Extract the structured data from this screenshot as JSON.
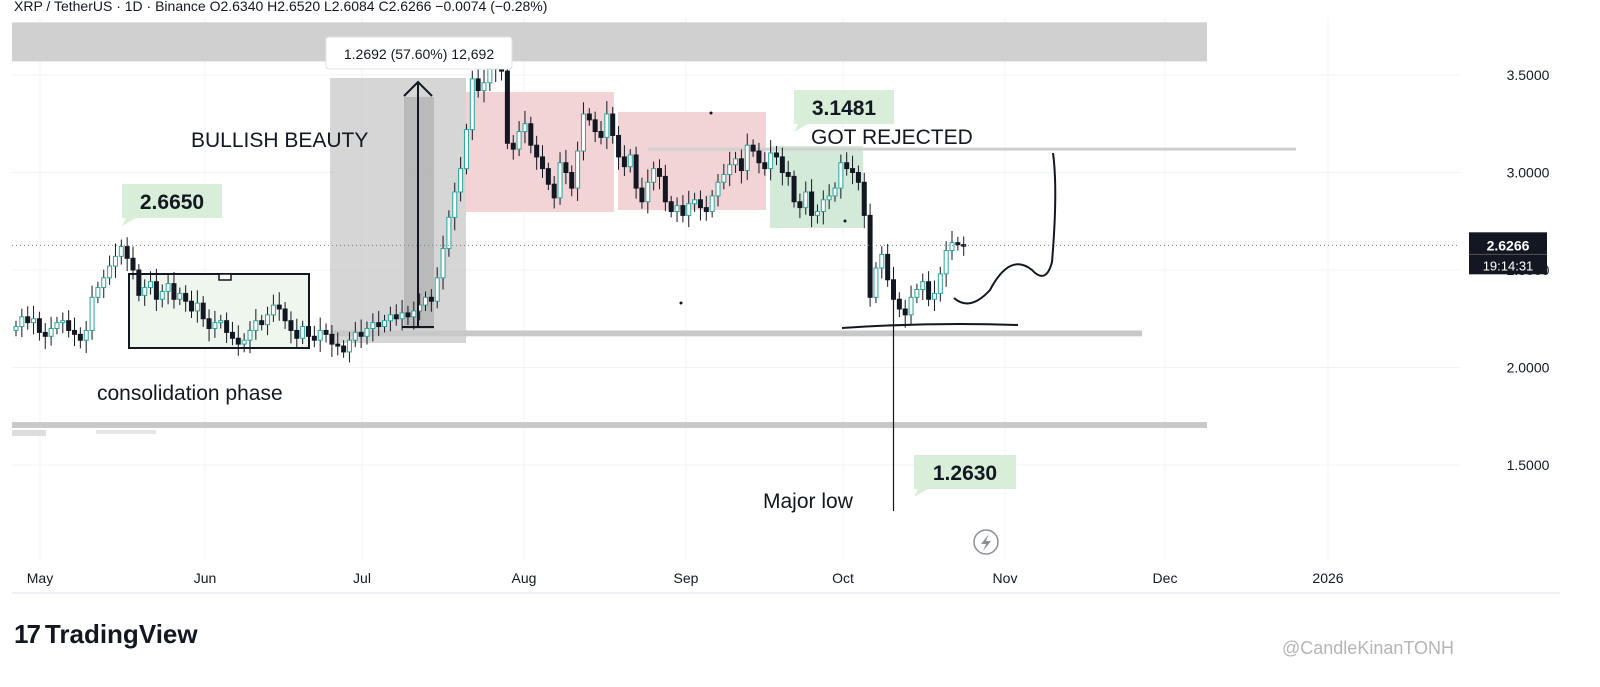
{
  "header": {
    "symbol_line": "XRP / TetherUS · 1D · Binance  O2.6340  H2.6520  L2.6084  C2.6266  −0.0074 (−0.28%)"
  },
  "brand": {
    "logo_text": "TradingView",
    "logo_icon": "tradingview-logo-icon"
  },
  "watermark": "@CandleKinanTONH",
  "colors": {
    "up": "#26a69a",
    "down": "#131722",
    "zone_gray": "#c8c8c8",
    "zone_red": "#f2d3d6",
    "zone_green": "#d3ead9",
    "zone_lightgreen": "#eef6ee",
    "label_green": "#d8eed8",
    "price_tag": "#131722"
  },
  "chart_data": {
    "type": "candlestick",
    "x_labels": [
      "May",
      "Jun",
      "Jul",
      "Aug",
      "Sep",
      "Oct",
      "Nov",
      "Dec",
      "2026"
    ],
    "y_ticks": [
      "3.5000",
      "3.0000",
      "2.5000",
      "2.0000",
      "1.5000"
    ],
    "y_tick_values": [
      3.5,
      3.0,
      2.5,
      2.0,
      1.5
    ],
    "ylim": [
      1.0,
      3.9
    ],
    "current_price": {
      "value": 2.6266,
      "label": "2.6266",
      "countdown": "19:14:31"
    },
    "closes": [
      2.21,
      2.26,
      2.23,
      2.25,
      2.18,
      2.16,
      2.2,
      2.23,
      2.24,
      2.19,
      2.17,
      2.14,
      2.19,
      2.36,
      2.41,
      2.46,
      2.52,
      2.57,
      2.62,
      2.56,
      2.5,
      2.37,
      2.41,
      2.44,
      2.35,
      2.39,
      2.43,
      2.35,
      2.38,
      2.34,
      2.29,
      2.33,
      2.25,
      2.2,
      2.23,
      2.24,
      2.18,
      2.15,
      2.12,
      2.14,
      2.19,
      2.24,
      2.22,
      2.27,
      2.32,
      2.3,
      2.24,
      2.19,
      2.15,
      2.21,
      2.16,
      2.14,
      2.19,
      2.17,
      2.12,
      2.11,
      2.08,
      2.14,
      2.18,
      2.16,
      2.2,
      2.23,
      2.21,
      2.24,
      2.27,
      2.25,
      2.28,
      2.26,
      2.29,
      2.32,
      2.36,
      2.34,
      2.46,
      2.61,
      2.77,
      2.9,
      3.02,
      3.22,
      3.48,
      3.42,
      3.46,
      3.53,
      3.6,
      3.52,
      3.15,
      3.12,
      3.21,
      3.25,
      3.14,
      3.08,
      3.02,
      2.94,
      2.87,
      3.05,
      3.0,
      2.92,
      3.11,
      3.3,
      3.27,
      3.21,
      3.18,
      3.3,
      3.19,
      3.08,
      3.03,
      3.09,
      2.92,
      2.85,
      2.95,
      3.02,
      2.98,
      2.85,
      2.8,
      2.83,
      2.78,
      2.84,
      2.86,
      2.82,
      2.8,
      2.88,
      2.95,
      2.99,
      3.04,
      3.07,
      3.01,
      3.14,
      3.11,
      3.05,
      3.02,
      3.1,
      3.08,
      3.0,
      2.98,
      2.85,
      2.82,
      2.9,
      2.78,
      2.8,
      2.86,
      2.88,
      2.92,
      3.05,
      3.02,
      3.0,
      2.95,
      2.78,
      2.36,
      2.51,
      2.58,
      2.45,
      2.35,
      2.3,
      2.27,
      2.36,
      2.4,
      2.44,
      2.35,
      2.38,
      2.48,
      2.6,
      2.64,
      2.63,
      2.6266
    ],
    "annotations": [
      {
        "name": "bullish-beauty-label",
        "text": "BULLISH BEAUTY"
      },
      {
        "name": "consolidation-label",
        "text": "consolidation phase"
      },
      {
        "name": "got-rejected-label",
        "text": "GOT REJECTED"
      },
      {
        "name": "major-low-label",
        "text": "Major low"
      },
      {
        "name": "measure-readout",
        "text": "1.2692 (57.60%) 12,692"
      },
      {
        "name": "callout-2-6650",
        "text": "2.6650",
        "price": 2.665
      },
      {
        "name": "callout-3-1481",
        "text": "3.1481",
        "price": 3.1481
      },
      {
        "name": "callout-1-2630",
        "text": "1.2630",
        "price": 1.263
      }
    ],
    "levels": [
      {
        "name": "supply-zone",
        "from": 3.57,
        "to": 3.77
      },
      {
        "name": "support-band",
        "from": 2.16,
        "to": 2.19
      },
      {
        "name": "lower-support-band",
        "from": 1.69,
        "to": 1.72
      },
      {
        "name": "rejection-line",
        "value": 3.12
      }
    ]
  }
}
